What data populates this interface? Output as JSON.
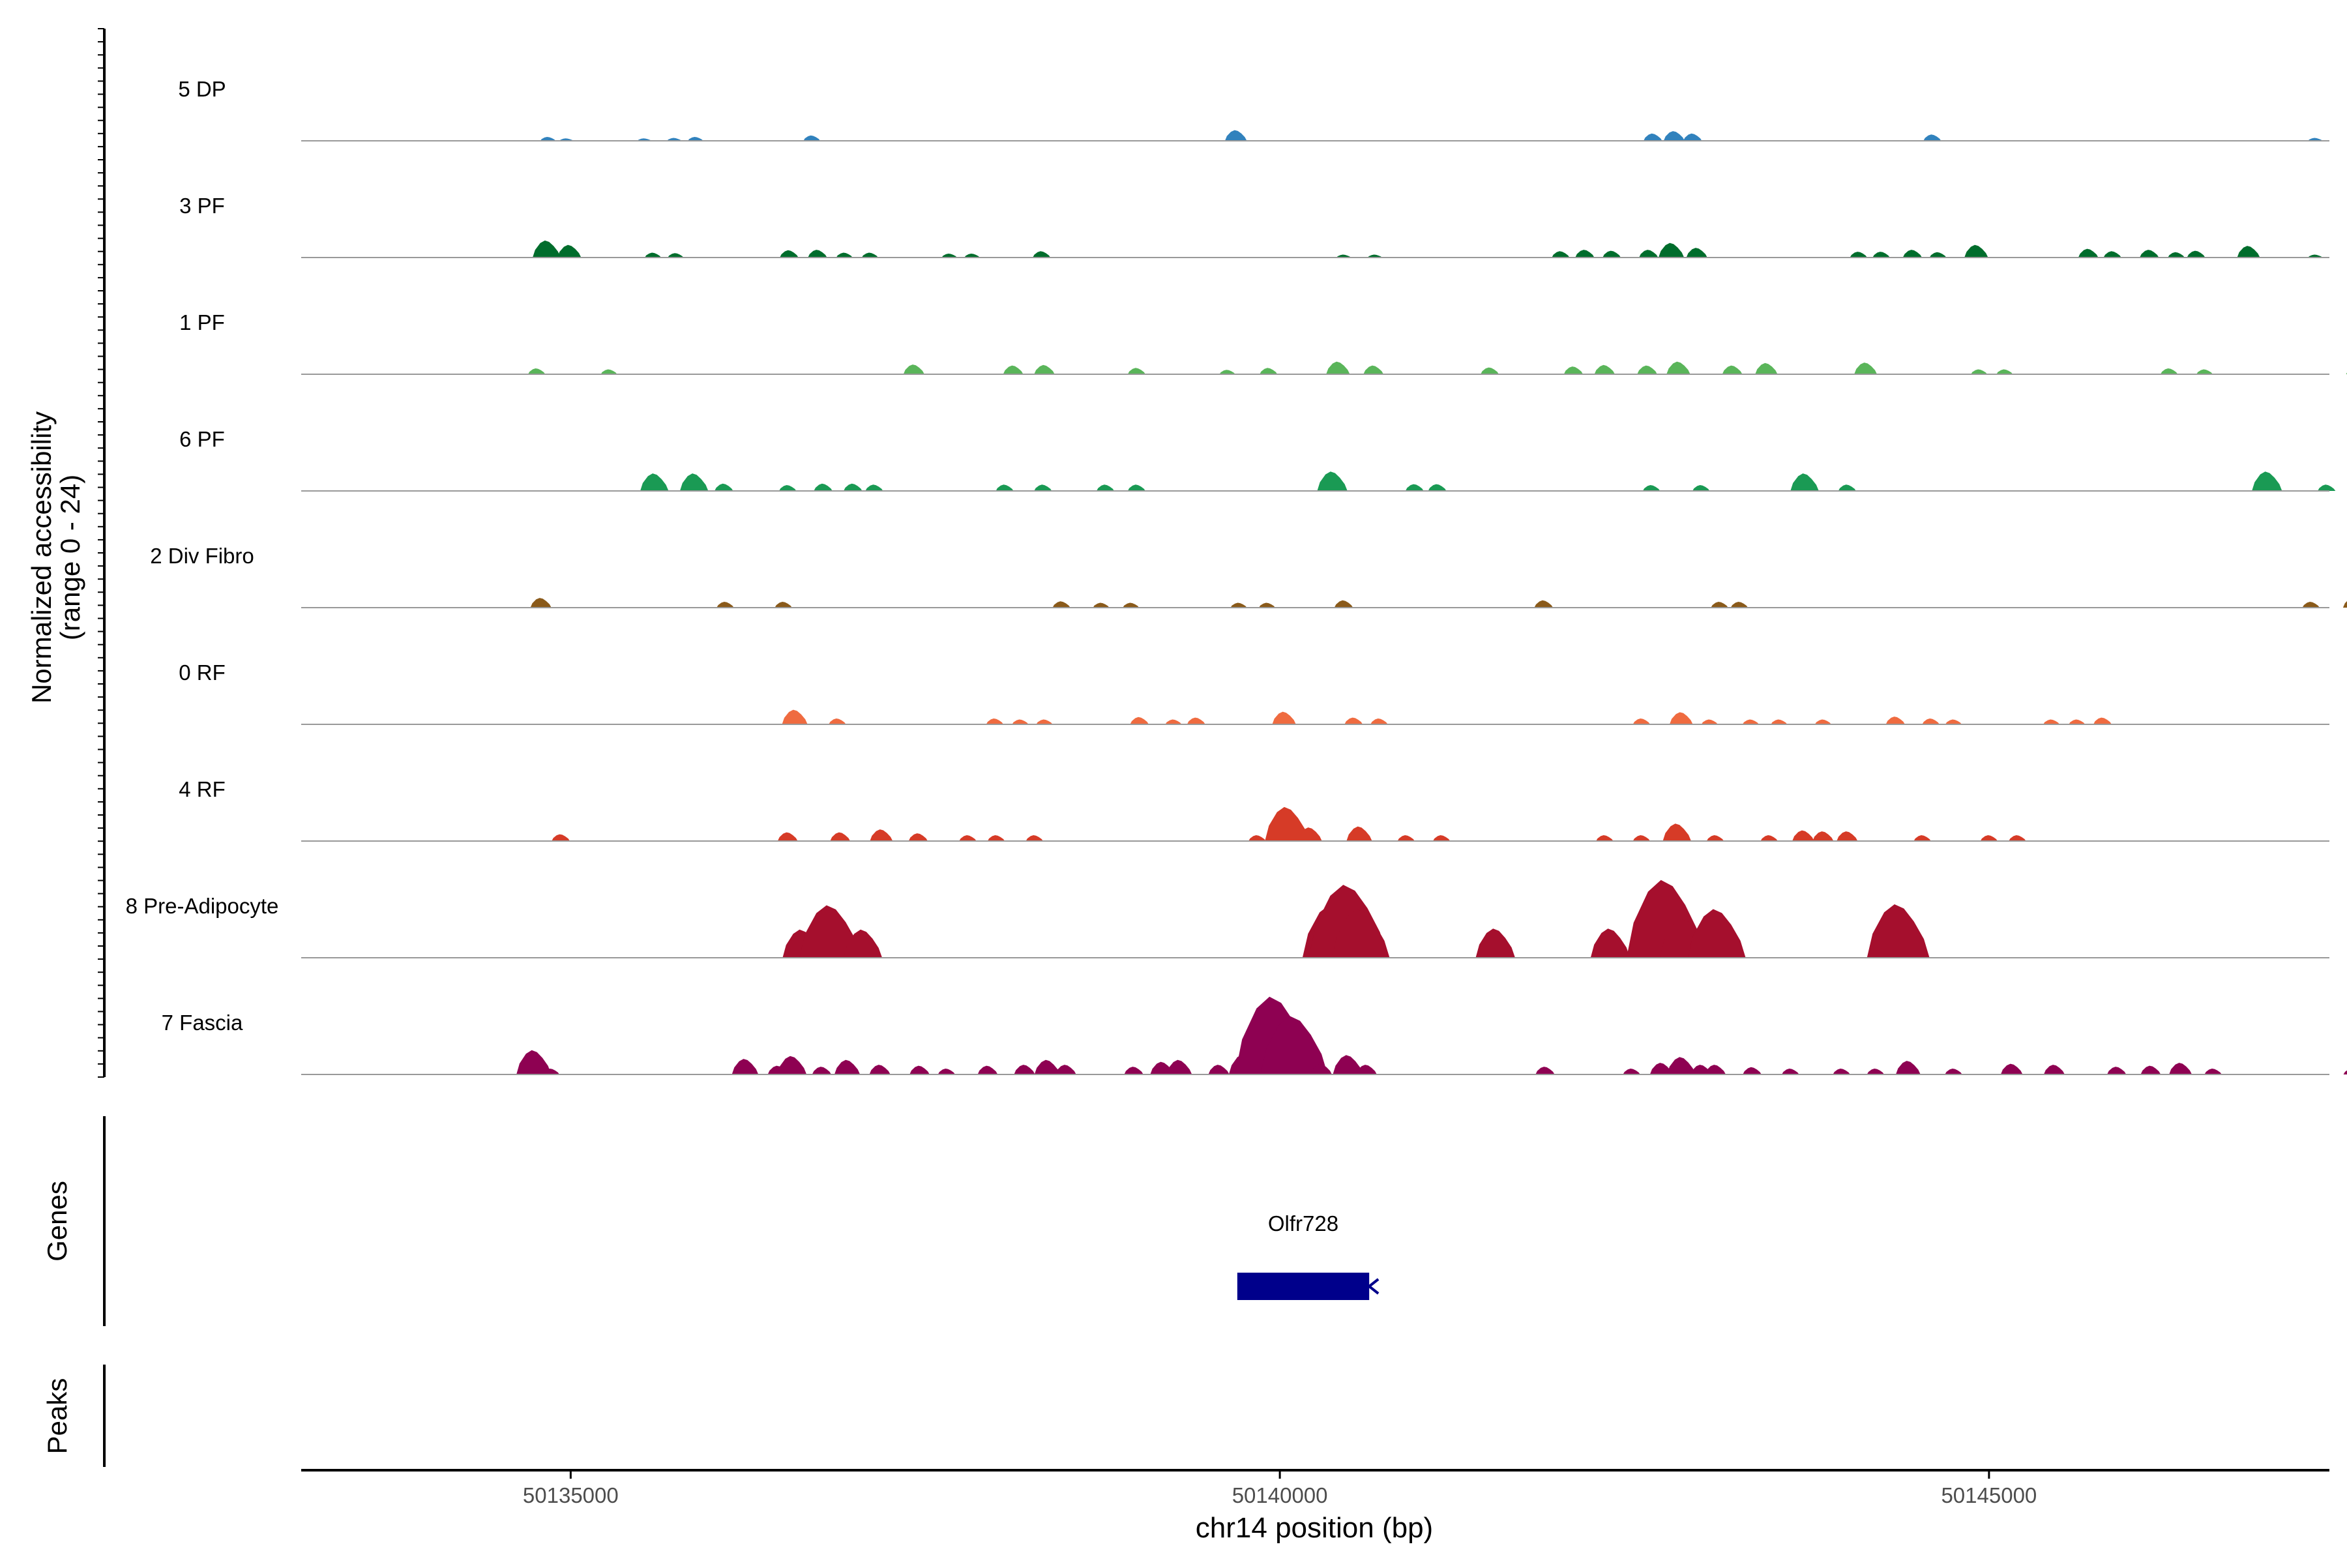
{
  "chart_data": {
    "type": "area",
    "title": "",
    "chromosome": "chr14",
    "xlabel": "chr14 position (bp)",
    "ylabel_line1": "Normalized accessibility",
    "ylabel_line2": "(range 0 - 24)",
    "xlim": [
      50133100,
      50147400
    ],
    "ylim": [
      0,
      24
    ],
    "xticks": [
      50135000,
      50140000,
      50145000
    ],
    "xtick_labels": [
      "50135000",
      "50140000",
      "50145000"
    ],
    "tracks": [
      {
        "name": "5 DP",
        "color": "#3182bd",
        "peaks": [
          [
            50134840,
            0.8
          ],
          [
            50134970,
            0.5
          ],
          [
            50135520,
            0.5
          ],
          [
            50135730,
            0.6
          ],
          [
            50135880,
            0.8
          ],
          [
            50136700,
            1.1
          ],
          [
            50139690,
            2.2
          ],
          [
            50142630,
            1.5
          ],
          [
            50142780,
            2.0
          ],
          [
            50142910,
            1.5
          ],
          [
            50144600,
            1.3
          ],
          [
            50147300,
            0.6
          ]
        ]
      },
      {
        "name": "3 PF",
        "color": "#006d2c",
        "peaks": [
          [
            50134830,
            3.5
          ],
          [
            50134990,
            2.6
          ],
          [
            50135580,
            1.0
          ],
          [
            50135740,
            0.9
          ],
          [
            50136540,
            1.5
          ],
          [
            50136740,
            1.6
          ],
          [
            50136930,
            1.0
          ],
          [
            50137110,
            1.0
          ],
          [
            50137670,
            0.8
          ],
          [
            50137830,
            0.8
          ],
          [
            50138320,
            1.3
          ],
          [
            50140450,
            0.6
          ],
          [
            50140670,
            0.6
          ],
          [
            50141980,
            1.3
          ],
          [
            50142150,
            1.6
          ],
          [
            50142340,
            1.4
          ],
          [
            50142600,
            1.6
          ],
          [
            50142760,
            3.0
          ],
          [
            50142940,
            2.0
          ],
          [
            50144080,
            1.2
          ],
          [
            50144240,
            1.2
          ],
          [
            50144460,
            1.6
          ],
          [
            50144640,
            1.1
          ],
          [
            50144910,
            2.6
          ],
          [
            50145700,
            1.8
          ],
          [
            50145870,
            1.3
          ],
          [
            50146130,
            1.6
          ],
          [
            50146320,
            1.1
          ],
          [
            50146460,
            1.4
          ],
          [
            50146830,
            2.4
          ],
          [
            50147300,
            0.6
          ]
        ]
      },
      {
        "name": "1 PF",
        "color": "#5ab55a",
        "peaks": [
          [
            50134760,
            1.2
          ],
          [
            50135270,
            1.0
          ],
          [
            50137420,
            2.0
          ],
          [
            50138120,
            1.8
          ],
          [
            50138340,
            1.9
          ],
          [
            50138990,
            1.3
          ],
          [
            50139630,
            0.9
          ],
          [
            50139920,
            1.3
          ],
          [
            50140410,
            2.6
          ],
          [
            50140660,
            1.8
          ],
          [
            50141480,
            1.4
          ],
          [
            50142070,
            1.6
          ],
          [
            50142290,
            1.9
          ],
          [
            50142590,
            1.8
          ],
          [
            50142810,
            2.6
          ],
          [
            50143190,
            1.8
          ],
          [
            50143430,
            2.3
          ],
          [
            50144130,
            2.4
          ],
          [
            50144930,
            1.0
          ],
          [
            50145110,
            1.0
          ],
          [
            50146270,
            1.2
          ],
          [
            50146520,
            1.0
          ],
          [
            50147580,
            1.3
          ]
        ]
      },
      {
        "name": "6 PF",
        "color": "#1a9a54",
        "peaks": [
          [
            50135590,
            3.6
          ],
          [
            50135870,
            3.6
          ],
          [
            50136080,
            1.5
          ],
          [
            50136530,
            1.2
          ],
          [
            50136780,
            1.5
          ],
          [
            50136990,
            1.5
          ],
          [
            50137140,
            1.3
          ],
          [
            50138060,
            1.3
          ],
          [
            50138330,
            1.3
          ],
          [
            50138770,
            1.3
          ],
          [
            50138990,
            1.3
          ],
          [
            50140370,
            4.0
          ],
          [
            50140950,
            1.4
          ],
          [
            50141110,
            1.4
          ],
          [
            50142620,
            1.2
          ],
          [
            50142970,
            1.2
          ],
          [
            50143700,
            3.6
          ],
          [
            50144000,
            1.3
          ],
          [
            50146960,
            4.0
          ],
          [
            50147380,
            1.3
          ]
        ]
      },
      {
        "name": "2 Div Fibro",
        "color": "#8a5a1a",
        "peaks": [
          [
            50134790,
            2.0
          ],
          [
            50136090,
            1.2
          ],
          [
            50136500,
            1.2
          ],
          [
            50138460,
            1.3
          ],
          [
            50138740,
            1.0
          ],
          [
            50138950,
            1.0
          ],
          [
            50139710,
            1.0
          ],
          [
            50139910,
            1.0
          ],
          [
            50140450,
            1.5
          ],
          [
            50141860,
            1.5
          ],
          [
            50143100,
            1.2
          ],
          [
            50143240,
            1.2
          ],
          [
            50147270,
            1.2
          ],
          [
            50147570,
            2.0
          ]
        ]
      },
      {
        "name": "0 RF",
        "color": "#ef6b40",
        "peaks": [
          [
            50136580,
            3.0
          ],
          [
            50136880,
            1.2
          ],
          [
            50137990,
            1.2
          ],
          [
            50138170,
            1.0
          ],
          [
            50138340,
            1.0
          ],
          [
            50139010,
            1.5
          ],
          [
            50139250,
            1.0
          ],
          [
            50139410,
            1.4
          ],
          [
            50140030,
            2.6
          ],
          [
            50140520,
            1.4
          ],
          [
            50140700,
            1.2
          ],
          [
            50142550,
            1.2
          ],
          [
            50142830,
            2.5
          ],
          [
            50143030,
            1.0
          ],
          [
            50143320,
            1.0
          ],
          [
            50143520,
            1.0
          ],
          [
            50143830,
            1.0
          ],
          [
            50144340,
            1.6
          ],
          [
            50144590,
            1.2
          ],
          [
            50144750,
            1.0
          ],
          [
            50145440,
            1.0
          ],
          [
            50145620,
            1.0
          ],
          [
            50145800,
            1.4
          ]
        ]
      },
      {
        "name": "4 RF",
        "color": "#d63b27",
        "peaks": [
          [
            50134930,
            1.4
          ],
          [
            50136530,
            1.8
          ],
          [
            50136900,
            1.8
          ],
          [
            50137190,
            2.4
          ],
          [
            50137450,
            1.6
          ],
          [
            50137800,
            1.2
          ],
          [
            50138000,
            1.2
          ],
          [
            50138270,
            1.2
          ],
          [
            50139840,
            1.2
          ],
          [
            50140050,
            7.0
          ],
          [
            50140210,
            2.8
          ],
          [
            50140560,
            3.0
          ],
          [
            50140890,
            1.2
          ],
          [
            50141140,
            1.2
          ],
          [
            50142290,
            1.2
          ],
          [
            50142550,
            1.2
          ],
          [
            50142800,
            3.6
          ],
          [
            50143070,
            1.2
          ],
          [
            50143450,
            1.2
          ],
          [
            50143690,
            2.2
          ],
          [
            50143830,
            2.0
          ],
          [
            50144000,
            2.0
          ],
          [
            50144530,
            1.2
          ],
          [
            50145000,
            1.2
          ],
          [
            50145200,
            1.2
          ]
        ]
      },
      {
        "name": "8 Pre-Adipocyte",
        "color": "#a50f2d",
        "peaks": [
          [
            50136630,
            5.8
          ],
          [
            50136830,
            10.8
          ],
          [
            50137060,
            5.8
          ],
          [
            50140380,
            11.0
          ],
          [
            50140480,
            15.0
          ],
          [
            50140570,
            10.0
          ],
          [
            50141520,
            6.0
          ],
          [
            50142330,
            6.0
          ],
          [
            50142720,
            16.0
          ],
          [
            50142850,
            8.0
          ],
          [
            50143080,
            10.0
          ],
          [
            50144360,
            11.0
          ]
        ]
      },
      {
        "name": "7 Fascia",
        "color": "#8e0152",
        "peaks": [
          [
            50134740,
            5.0
          ],
          [
            50134860,
            1.2
          ],
          [
            50136230,
            3.2
          ],
          [
            50136460,
            1.8
          ],
          [
            50136560,
            3.8
          ],
          [
            50136770,
            1.6
          ],
          [
            50136950,
            3.0
          ],
          [
            50137180,
            2.0
          ],
          [
            50137460,
            1.8
          ],
          [
            50137650,
            1.2
          ],
          [
            50137940,
            1.8
          ],
          [
            50138200,
            2.0
          ],
          [
            50138360,
            3.0
          ],
          [
            50138490,
            2.0
          ],
          [
            50138970,
            1.6
          ],
          [
            50139170,
            2.6
          ],
          [
            50139290,
            3.0
          ],
          [
            50139570,
            2.0
          ],
          [
            50139750,
            4.2
          ],
          [
            50139960,
            16.0
          ],
          [
            50140100,
            12.0
          ],
          [
            50140290,
            2.2
          ],
          [
            50140480,
            4.0
          ],
          [
            50140610,
            2.0
          ],
          [
            50141870,
            1.6
          ],
          [
            50142480,
            1.2
          ],
          [
            50142690,
            2.4
          ],
          [
            50142830,
            3.6
          ],
          [
            50142970,
            2.0
          ],
          [
            50143070,
            2.0
          ],
          [
            50143330,
            1.5
          ],
          [
            50143600,
            1.2
          ],
          [
            50143960,
            1.2
          ],
          [
            50144200,
            1.2
          ],
          [
            50144430,
            2.8
          ],
          [
            50144750,
            1.2
          ],
          [
            50145160,
            2.2
          ],
          [
            50145460,
            2.0
          ],
          [
            50145900,
            1.6
          ],
          [
            50146140,
            1.8
          ],
          [
            50146350,
            2.4
          ],
          [
            50146580,
            1.2
          ],
          [
            50147560,
            1.2
          ]
        ]
      }
    ],
    "genes": {
      "label": "Genes",
      "items": [
        {
          "name": "Olfr728",
          "start": 50139700,
          "end": 50140630,
          "strand": "-",
          "color": "#00008b"
        }
      ]
    },
    "peaks_track": {
      "label": "Peaks",
      "items": []
    }
  }
}
